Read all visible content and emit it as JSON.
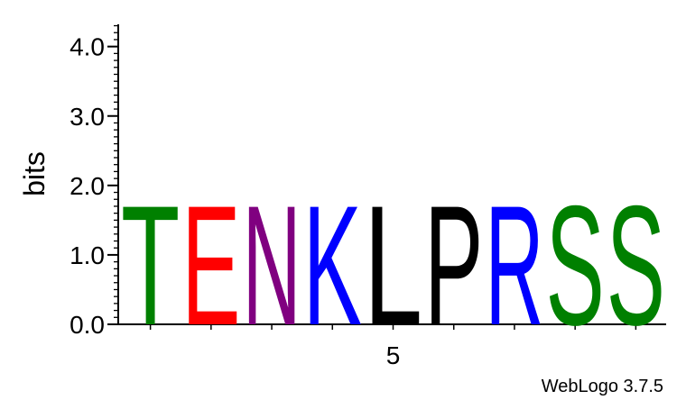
{
  "chart_data": {
    "type": "sequence-logo",
    "ylabel": "bits",
    "ylim": [
      0,
      4.32
    ],
    "yticks_major": [
      {
        "value": 0,
        "label": "0.0"
      },
      {
        "value": 1,
        "label": "1.0"
      },
      {
        "value": 2,
        "label": "2.0"
      },
      {
        "value": 3,
        "label": "3.0"
      },
      {
        "value": 4,
        "label": "4.0"
      }
    ],
    "ytick_minor_step": 0.1,
    "positions": [
      1,
      2,
      3,
      4,
      5,
      6,
      7,
      8,
      9
    ],
    "xtick_labels": [
      {
        "position": 5,
        "label": "5"
      }
    ],
    "series": [
      {
        "position": 1,
        "letter": "T",
        "bits": 1.76,
        "color": "#008000"
      },
      {
        "position": 2,
        "letter": "E",
        "bits": 1.76,
        "color": "#ff0000"
      },
      {
        "position": 3,
        "letter": "N",
        "bits": 1.76,
        "color": "#800080"
      },
      {
        "position": 4,
        "letter": "K",
        "bits": 1.76,
        "color": "#0000ff"
      },
      {
        "position": 5,
        "letter": "L",
        "bits": 1.76,
        "color": "#000000"
      },
      {
        "position": 6,
        "letter": "P",
        "bits": 1.76,
        "color": "#000000"
      },
      {
        "position": 7,
        "letter": "R",
        "bits": 1.76,
        "color": "#0000ff"
      },
      {
        "position": 8,
        "letter": "S",
        "bits": 1.76,
        "color": "#008000"
      },
      {
        "position": 9,
        "letter": "S",
        "bits": 1.76,
        "color": "#008000"
      }
    ],
    "grid": false
  },
  "footer": {
    "credit": "WebLogo 3.7.5"
  }
}
